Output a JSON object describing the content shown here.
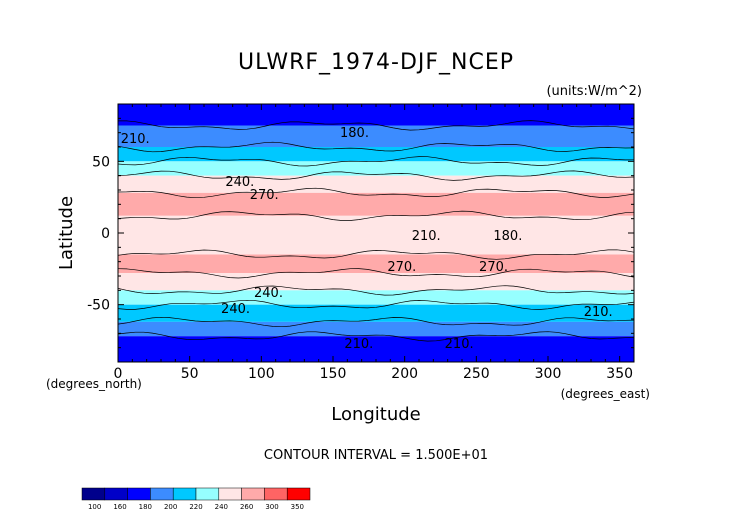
{
  "chart_data": {
    "type": "heatmap",
    "subtype": "filled contour map",
    "title": "ULWRF_1974-DJF_NCEP",
    "units": "(units:W/m^2)",
    "xlabel": "Longitude",
    "ylabel": "Latitude",
    "x_unit_label": "(degrees_east)",
    "y_unit_label": "(degrees_north)",
    "xlim": [
      0,
      360
    ],
    "ylim": [
      -90,
      90
    ],
    "x_ticks": [
      0,
      50,
      100,
      150,
      200,
      250,
      300,
      350
    ],
    "y_ticks": [
      50,
      0,
      -50
    ],
    "contour_interval_text": "CONTOUR INTERVAL = 1.500E+01",
    "contour_labels": [
      "210.",
      "180.",
      "240.",
      "270.",
      "210.",
      "180.",
      "270.",
      "270.",
      "240.",
      "240.",
      "210.",
      "210.",
      "210."
    ],
    "colorbar": {
      "levels": [
        100,
        160,
        180,
        200,
        220,
        240,
        260,
        300,
        350
      ],
      "bins": 10,
      "colors": [
        "#00008c",
        "#0000c8",
        "#0000ff",
        "#3c8cff",
        "#00c8ff",
        "#96ffff",
        "#ffe6e6",
        "#ffaaaa",
        "#ff6464",
        "#ff0000"
      ]
    },
    "bands_by_latitude": [
      {
        "lat": [
          90,
          75
        ],
        "value": 160
      },
      {
        "lat": [
          75,
          60
        ],
        "value": 185
      },
      {
        "lat": [
          60,
          50
        ],
        "value": 210
      },
      {
        "lat": [
          50,
          40
        ],
        "value": 228
      },
      {
        "lat": [
          40,
          28
        ],
        "value": 250
      },
      {
        "lat": [
          28,
          12
        ],
        "value": 280
      },
      {
        "lat": [
          12,
          -15
        ],
        "value": 255
      },
      {
        "lat": [
          -15,
          -28
        ],
        "value": 275
      },
      {
        "lat": [
          -28,
          -40
        ],
        "value": 255
      },
      {
        "lat": [
          -40,
          -50
        ],
        "value": 225
      },
      {
        "lat": [
          -50,
          -62
        ],
        "value": 205
      },
      {
        "lat": [
          -62,
          -72
        ],
        "value": 190
      },
      {
        "lat": [
          -72,
          -90
        ],
        "value": 175
      }
    ]
  },
  "colorbar_labels": [
    "100",
    "160",
    "180",
    "200",
    "220",
    "240",
    "260",
    "300",
    "350"
  ]
}
